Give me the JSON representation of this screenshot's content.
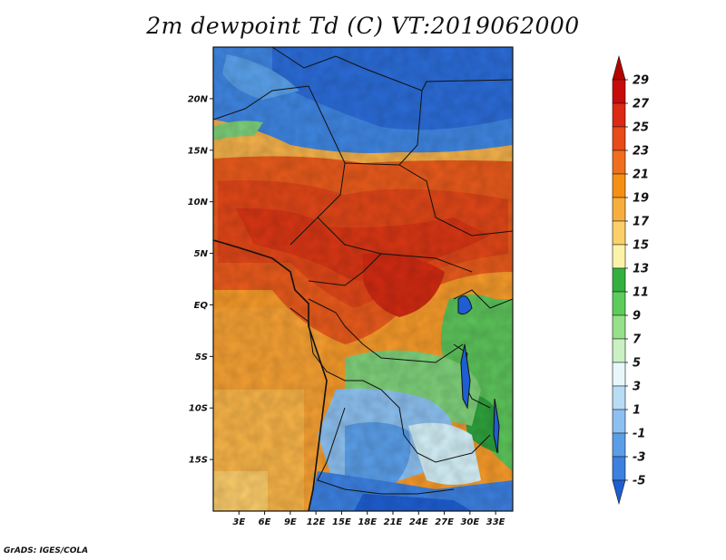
{
  "title": "2m dewpoint Td (C) VT:2019062000",
  "credit": "GrADS: IGES/COLA",
  "map": {
    "lat_labels": [
      "20N",
      "15N",
      "10N",
      "5N",
      "EQ",
      "5S",
      "10S",
      "15S"
    ],
    "lat_values": [
      20,
      15,
      10,
      5,
      0,
      -5,
      -10,
      -15
    ],
    "lon_labels": [
      "3E",
      "6E",
      "9E",
      "12E",
      "15E",
      "18E",
      "21E",
      "24E",
      "27E",
      "30E",
      "33E"
    ],
    "lon_values": [
      3,
      6,
      9,
      12,
      15,
      18,
      21,
      24,
      27,
      30,
      33
    ],
    "lat_range": [
      -20,
      25
    ],
    "lon_range": [
      0,
      35
    ]
  },
  "colorbar": {
    "labels": [
      "29",
      "27",
      "25",
      "23",
      "21",
      "19",
      "17",
      "15",
      "13",
      "11",
      "9",
      "7",
      "5",
      "3",
      "1",
      "-1",
      "-3",
      "-5"
    ],
    "colors": [
      "#b40000",
      "#c80a0a",
      "#dc2814",
      "#e84a18",
      "#f06e1e",
      "#f59014",
      "#f8ae3c",
      "#fcd068",
      "#fcf3a8",
      "#33b040",
      "#5ccc5a",
      "#96e08a",
      "#caf0c4",
      "#e8f8fa",
      "#b8dcf6",
      "#8cc0f0",
      "#5a9ee8",
      "#3c80e0",
      "#1e5ed2"
    ]
  }
}
